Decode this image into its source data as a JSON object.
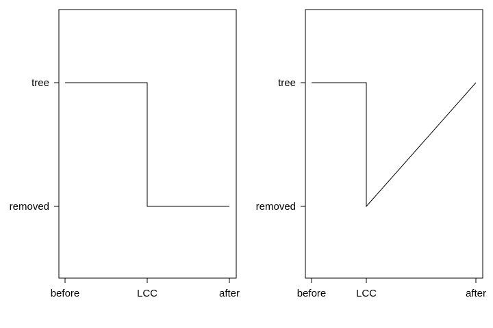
{
  "chart_data": [
    {
      "type": "line",
      "x_categories": [
        "before",
        "LCC",
        "after"
      ],
      "y_categories": [
        "tree",
        "removed"
      ],
      "series": [
        {
          "points": [
            {
              "x": "before",
              "y": "tree"
            },
            {
              "x": "LCC",
              "y": "tree"
            },
            {
              "x": "LCC",
              "y": "removed"
            },
            {
              "x": "after",
              "y": "removed"
            }
          ]
        }
      ],
      "grid": false,
      "legend": "none"
    },
    {
      "type": "line",
      "x_categories": [
        "before",
        "LCC",
        "after"
      ],
      "y_categories": [
        "tree",
        "removed"
      ],
      "series": [
        {
          "points": [
            {
              "x": "before",
              "y": "tree"
            },
            {
              "x": "LCC",
              "y": "tree"
            },
            {
              "x": "LCC",
              "y": "removed"
            },
            {
              "x": "after",
              "y": "tree"
            }
          ]
        }
      ],
      "grid": false,
      "legend": "none"
    }
  ]
}
